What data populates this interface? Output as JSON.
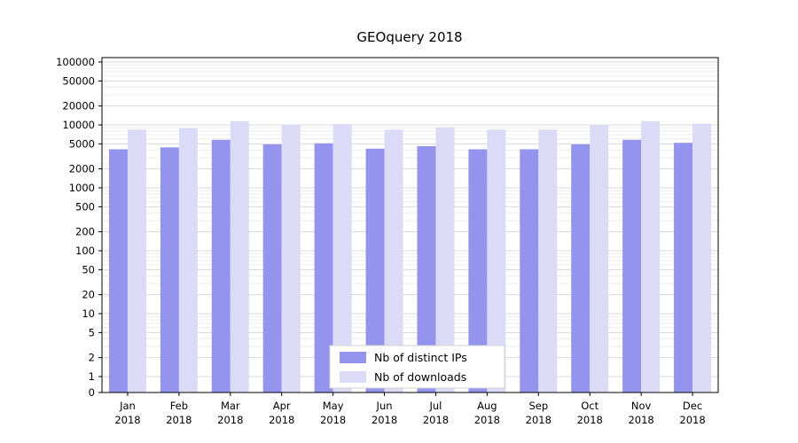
{
  "chart_data": {
    "type": "bar",
    "title": "GEOquery 2018",
    "categories": [
      "Jan",
      "Feb",
      "Mar",
      "Apr",
      "May",
      "Jun",
      "Jul",
      "Aug",
      "Sep",
      "Oct",
      "Nov",
      "Dec"
    ],
    "category_subline": "2018",
    "series": [
      {
        "name": "Nb of distinct IPs",
        "color": "#9494ee",
        "values": [
          4100,
          4400,
          5800,
          4900,
          5100,
          4200,
          4600,
          4100,
          4100,
          4900,
          5800,
          5200
        ]
      },
      {
        "name": "Nb of downloads",
        "color": "#dbdbf8",
        "values": [
          8400,
          8900,
          11500,
          10000,
          10300,
          8400,
          9200,
          8400,
          8400,
          10000,
          11500,
          10500
        ]
      }
    ],
    "y_ticks": [
      0,
      1,
      2,
      5,
      10,
      20,
      50,
      100,
      200,
      500,
      1000,
      2000,
      5000,
      10000,
      20000,
      50000,
      100000
    ],
    "y_scale": "symlog",
    "ylim": [
      0,
      100000
    ],
    "grid": true,
    "legend_position": "lower center",
    "colors": {
      "grid_major": "#d8d8d8",
      "grid_minor": "#ececec",
      "axis": "#000000",
      "legend_border": "#d0d0d0",
      "background": "#ffffff"
    }
  }
}
